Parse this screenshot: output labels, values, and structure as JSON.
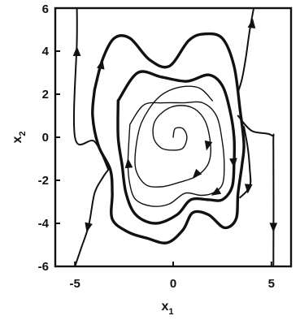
{
  "chart_data": {
    "type": "line",
    "title": "",
    "xlabel": "x",
    "xlabel_sub": "1",
    "ylabel": "x",
    "ylabel_sub": "2",
    "xlim": [
      -6,
      6
    ],
    "ylim": [
      -6,
      6
    ],
    "xticks": [
      -5,
      0,
      5
    ],
    "yticks": [
      -6,
      -4,
      -2,
      0,
      2,
      4,
      6
    ],
    "xtick_labels": [
      "-5",
      "0",
      "5"
    ],
    "ytick_labels": [
      "-6",
      "-4",
      "-2",
      "0",
      "2",
      "4",
      "6"
    ],
    "grid": false,
    "legend": "none",
    "line_color": "#111111",
    "trajectories": [
      {
        "id": "limit-cycle",
        "style": "bold",
        "points": [
          [
            -4.0,
            2.2
          ],
          [
            -3.6,
            3.6
          ],
          [
            -3.0,
            4.6
          ],
          [
            -2.2,
            4.6
          ],
          [
            -1.2,
            3.6
          ],
          [
            -0.2,
            3.3
          ],
          [
            0.8,
            4.5
          ],
          [
            1.6,
            4.8
          ],
          [
            2.5,
            4.6
          ],
          [
            3.1,
            3.3
          ],
          [
            3.4,
            1.3
          ],
          [
            3.6,
            -0.3
          ],
          [
            3.5,
            -1.3
          ],
          [
            3.3,
            -2.6
          ],
          [
            3.2,
            -3.8
          ],
          [
            2.6,
            -4.2
          ],
          [
            1.8,
            -3.6
          ],
          [
            1.0,
            -3.5
          ],
          [
            0.5,
            -4.3
          ],
          [
            -0.3,
            -4.9
          ],
          [
            -1.3,
            -4.7
          ],
          [
            -2.3,
            -4.4
          ],
          [
            -3.1,
            -3.8
          ],
          [
            -3.1,
            -2.6
          ],
          [
            -3.2,
            -1.5
          ],
          [
            -3.8,
            -0.4
          ],
          [
            -4.1,
            1.0
          ],
          [
            -4.0,
            2.2
          ]
        ],
        "arrows": [
          [
            [
              -3.85,
              2.5
            ],
            [
              -3.6,
              3.6
            ]
          ]
        ]
      },
      {
        "id": "inner-spiral-1",
        "style": "bold",
        "points": [
          [
            -2.8,
            1.7
          ],
          [
            -1.8,
            3.0
          ],
          [
            -0.6,
            2.8
          ],
          [
            0.7,
            2.6
          ],
          [
            1.8,
            2.9
          ],
          [
            2.5,
            2.4
          ],
          [
            2.9,
            1.2
          ],
          [
            3.1,
            0.0
          ],
          [
            3.1,
            -1.2
          ],
          [
            3.0,
            -2.3
          ],
          [
            2.5,
            -2.9
          ],
          [
            1.8,
            -2.9
          ],
          [
            0.9,
            -2.9
          ],
          [
            0.2,
            -3.6
          ],
          [
            -0.9,
            -4.0
          ],
          [
            -1.9,
            -3.6
          ],
          [
            -2.4,
            -2.6
          ],
          [
            -2.6,
            -1.3
          ],
          [
            -2.8,
            0.0
          ],
          [
            -2.8,
            1.7
          ]
        ],
        "arrows": [
          [
            [
              3.05,
              -0.9
            ],
            [
              3.1,
              -1.4
            ]
          ]
        ]
      },
      {
        "id": "inner-spiral-2",
        "style": "thin",
        "points": [
          [
            -2.2,
            0.6
          ],
          [
            -1.5,
            1.5
          ],
          [
            -0.5,
            1.6
          ],
          [
            0.5,
            1.6
          ],
          [
            1.5,
            1.6
          ],
          [
            2.2,
            1.0
          ],
          [
            2.5,
            -0.2
          ],
          [
            2.6,
            -1.3
          ],
          [
            2.5,
            -2.2
          ],
          [
            2.0,
            -2.6
          ],
          [
            1.4,
            -2.7
          ],
          [
            0.6,
            -2.6
          ],
          [
            -0.2,
            -3.1
          ],
          [
            -1.1,
            -3.2
          ],
          [
            -1.9,
            -2.9
          ],
          [
            -2.2,
            -2.2
          ],
          [
            -2.3,
            -1.2
          ],
          [
            -2.2,
            0.6
          ]
        ],
        "arrows": [
          [
            [
              -2.2,
              -1.9
            ],
            [
              -2.3,
              -1.0
            ]
          ],
          [
            [
              2.3,
              -2.5
            ],
            [
              1.95,
              -2.7
            ]
          ]
        ]
      },
      {
        "id": "central-spiral",
        "style": "thin",
        "points": [
          [
            0.0,
            0.0
          ],
          [
            0.1,
            0.4
          ],
          [
            0.5,
            0.4
          ],
          [
            0.7,
            0.0
          ],
          [
            0.5,
            -0.5
          ],
          [
            0.0,
            -0.6
          ],
          [
            -0.6,
            -0.5
          ],
          [
            -1.0,
            0.0
          ],
          [
            -0.9,
            0.8
          ],
          [
            -0.1,
            1.4
          ],
          [
            0.9,
            1.4
          ],
          [
            1.6,
            0.8
          ],
          [
            1.9,
            -0.3
          ],
          [
            1.8,
            -1.2
          ],
          [
            1.2,
            -1.8
          ],
          [
            0.3,
            -2.1
          ],
          [
            -0.6,
            -2.3
          ],
          [
            -1.4,
            -2.2
          ],
          [
            -1.9,
            -1.5
          ],
          [
            -1.9,
            -0.5
          ],
          [
            -1.6,
            0.7
          ],
          [
            -0.8,
            1.8
          ],
          [
            0.2,
            2.3
          ],
          [
            1.3,
            2.3
          ],
          [
            2.0,
            1.7
          ]
        ],
        "arrows": [
          [
            [
              1.8,
              -0.2
            ],
            [
              1.7,
              -0.6
            ]
          ],
          [
            [
              1.3,
              -1.6
            ],
            [
              1.0,
              -1.9
            ]
          ]
        ]
      },
      {
        "id": "outer-right-inflow",
        "style": "normal",
        "points": [
          [
            4.1,
            6.0
          ],
          [
            3.9,
            5.0
          ],
          [
            3.7,
            3.7
          ],
          [
            3.5,
            2.7
          ],
          [
            3.3,
            2.1
          ]
        ],
        "arrows": [
          [
            [
              3.95,
              4.8
            ],
            [
              4.05,
              5.5
            ]
          ]
        ]
      },
      {
        "id": "right-edge-outflow",
        "style": "normal",
        "points": [
          [
            3.3,
            1.0
          ],
          [
            4.0,
            0.3
          ],
          [
            5.0,
            0.1
          ],
          [
            5.1,
            -0.5
          ],
          [
            5.1,
            -6.0
          ]
        ],
        "arrows": [
          [
            [
              5.1,
              -3.5
            ],
            [
              5.1,
              -4.4
            ]
          ]
        ]
      },
      {
        "id": "right-inflow",
        "style": "normal",
        "points": [
          [
            3.6,
            0.5
          ],
          [
            3.8,
            -0.5
          ],
          [
            3.9,
            -1.5
          ],
          [
            3.9,
            -2.3
          ],
          [
            3.4,
            -2.8
          ]
        ],
        "arrows": [
          [
            [
              3.85,
              -2.0
            ],
            [
              3.8,
              -2.6
            ]
          ]
        ]
      },
      {
        "id": "left-edge-outflow",
        "style": "normal",
        "points": [
          [
            -4.9,
            6.0
          ],
          [
            -4.9,
            4.5
          ],
          [
            -5.0,
            0.0
          ],
          [
            -4.0,
            -0.2
          ],
          [
            -3.3,
            -1.5
          ]
        ],
        "arrows": [
          [
            [
              -4.9,
              3.4
            ],
            [
              -4.9,
              4.2
            ]
          ]
        ]
      },
      {
        "id": "left-inflow",
        "style": "normal",
        "points": [
          [
            -5.0,
            -6.0
          ],
          [
            -4.7,
            -5.2
          ],
          [
            -4.3,
            -4.1
          ],
          [
            -4.0,
            -2.6
          ],
          [
            -3.6,
            -1.9
          ],
          [
            -3.3,
            -1.5
          ]
        ],
        "arrows": [
          [
            [
              -4.2,
              -3.6
            ],
            [
              -4.4,
              -4.4
            ]
          ]
        ]
      }
    ]
  }
}
